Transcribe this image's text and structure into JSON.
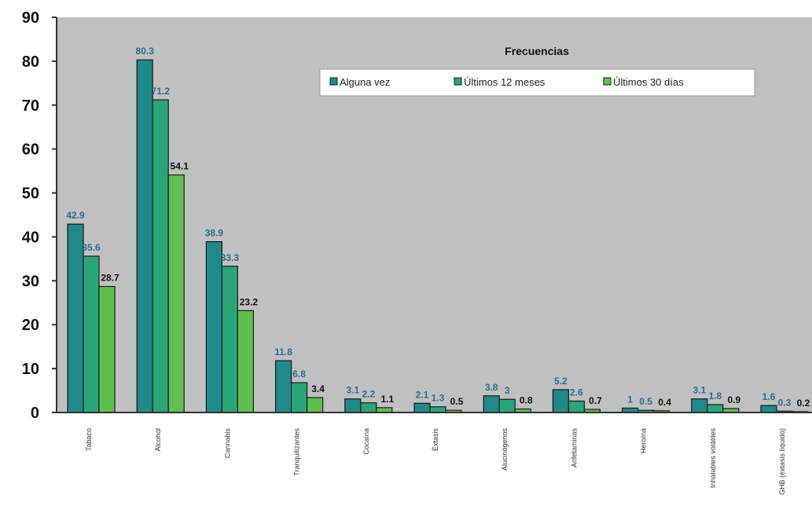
{
  "chart_data": {
    "type": "bar",
    "title": "",
    "xlabel": "",
    "ylabel": "",
    "ylim": [
      0,
      90
    ],
    "yticks": [
      0,
      10,
      20,
      30,
      40,
      50,
      60,
      70,
      80,
      90
    ],
    "grid": false,
    "legend": {
      "title": "Frecuencias",
      "placement": "top-right"
    },
    "categories": [
      "Tabaco",
      "Alcohol",
      "Cannabis",
      "Tranquilizantes",
      "Cocaína",
      "Éxtasis",
      "Alucinógenos",
      "Anfetaminas",
      "Heroína",
      "Inhalables volátiles",
      "GHB (éxtasis líquido)"
    ],
    "series": [
      {
        "name": "Alguna vez",
        "color": "#1f8a8a",
        "values": [
          42.9,
          80.3,
          38.9,
          11.8,
          3.1,
          2.1,
          3.8,
          5.2,
          1.0,
          3.1,
          1.6
        ]
      },
      {
        "name": "Últimos 12 meses",
        "color": "#2aa57a",
        "values": [
          35.6,
          71.2,
          33.3,
          6.8,
          2.2,
          1.3,
          3.0,
          2.6,
          0.5,
          1.8,
          0.3
        ]
      },
      {
        "name": "Últimos 30 días",
        "color": "#5fc04f",
        "values": [
          28.7,
          54.1,
          23.2,
          3.4,
          1.1,
          0.5,
          0.8,
          0.7,
          0.4,
          0.9,
          0.2
        ]
      }
    ]
  }
}
